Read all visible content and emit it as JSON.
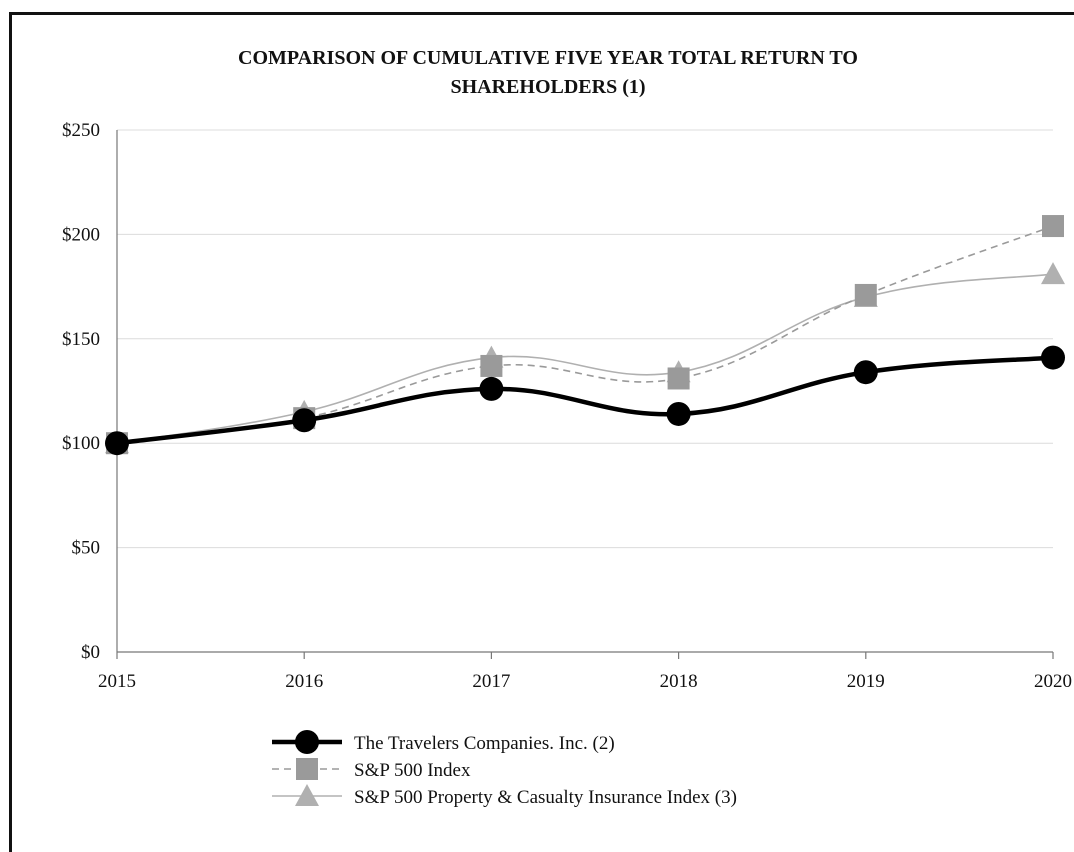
{
  "chart_data": {
    "type": "line",
    "title_line1": "COMPARISON OF CUMULATIVE FIVE YEAR TOTAL RETURN TO",
    "title_line2": "SHAREHOLDERS (1)",
    "categories": [
      "2015",
      "2016",
      "2017",
      "2018",
      "2019",
      "2020"
    ],
    "ylim": [
      0,
      250
    ],
    "yticks": [
      0,
      50,
      100,
      150,
      200,
      250
    ],
    "ytick_labels": [
      "$0",
      "$50",
      "$100",
      "$150",
      "$200",
      "$250"
    ],
    "grid": true,
    "legend_position": "bottom",
    "series": [
      {
        "name": "The Travelers Companies. Inc. (2)",
        "values": [
          100,
          111,
          126,
          114,
          134,
          141
        ],
        "color": "#000000",
        "marker": "circle",
        "line_style": "solid-thick"
      },
      {
        "name": "S&P 500 Index",
        "values": [
          100,
          112,
          137,
          131,
          171,
          204
        ],
        "color": "#9a9a9a",
        "marker": "square",
        "line_style": "dashed"
      },
      {
        "name": "S&P 500 Property & Casualty Insurance Index (3)",
        "values": [
          100,
          115,
          141,
          134,
          170,
          181
        ],
        "color": "#b0b0b0",
        "marker": "triangle",
        "line_style": "solid-thin"
      }
    ]
  }
}
